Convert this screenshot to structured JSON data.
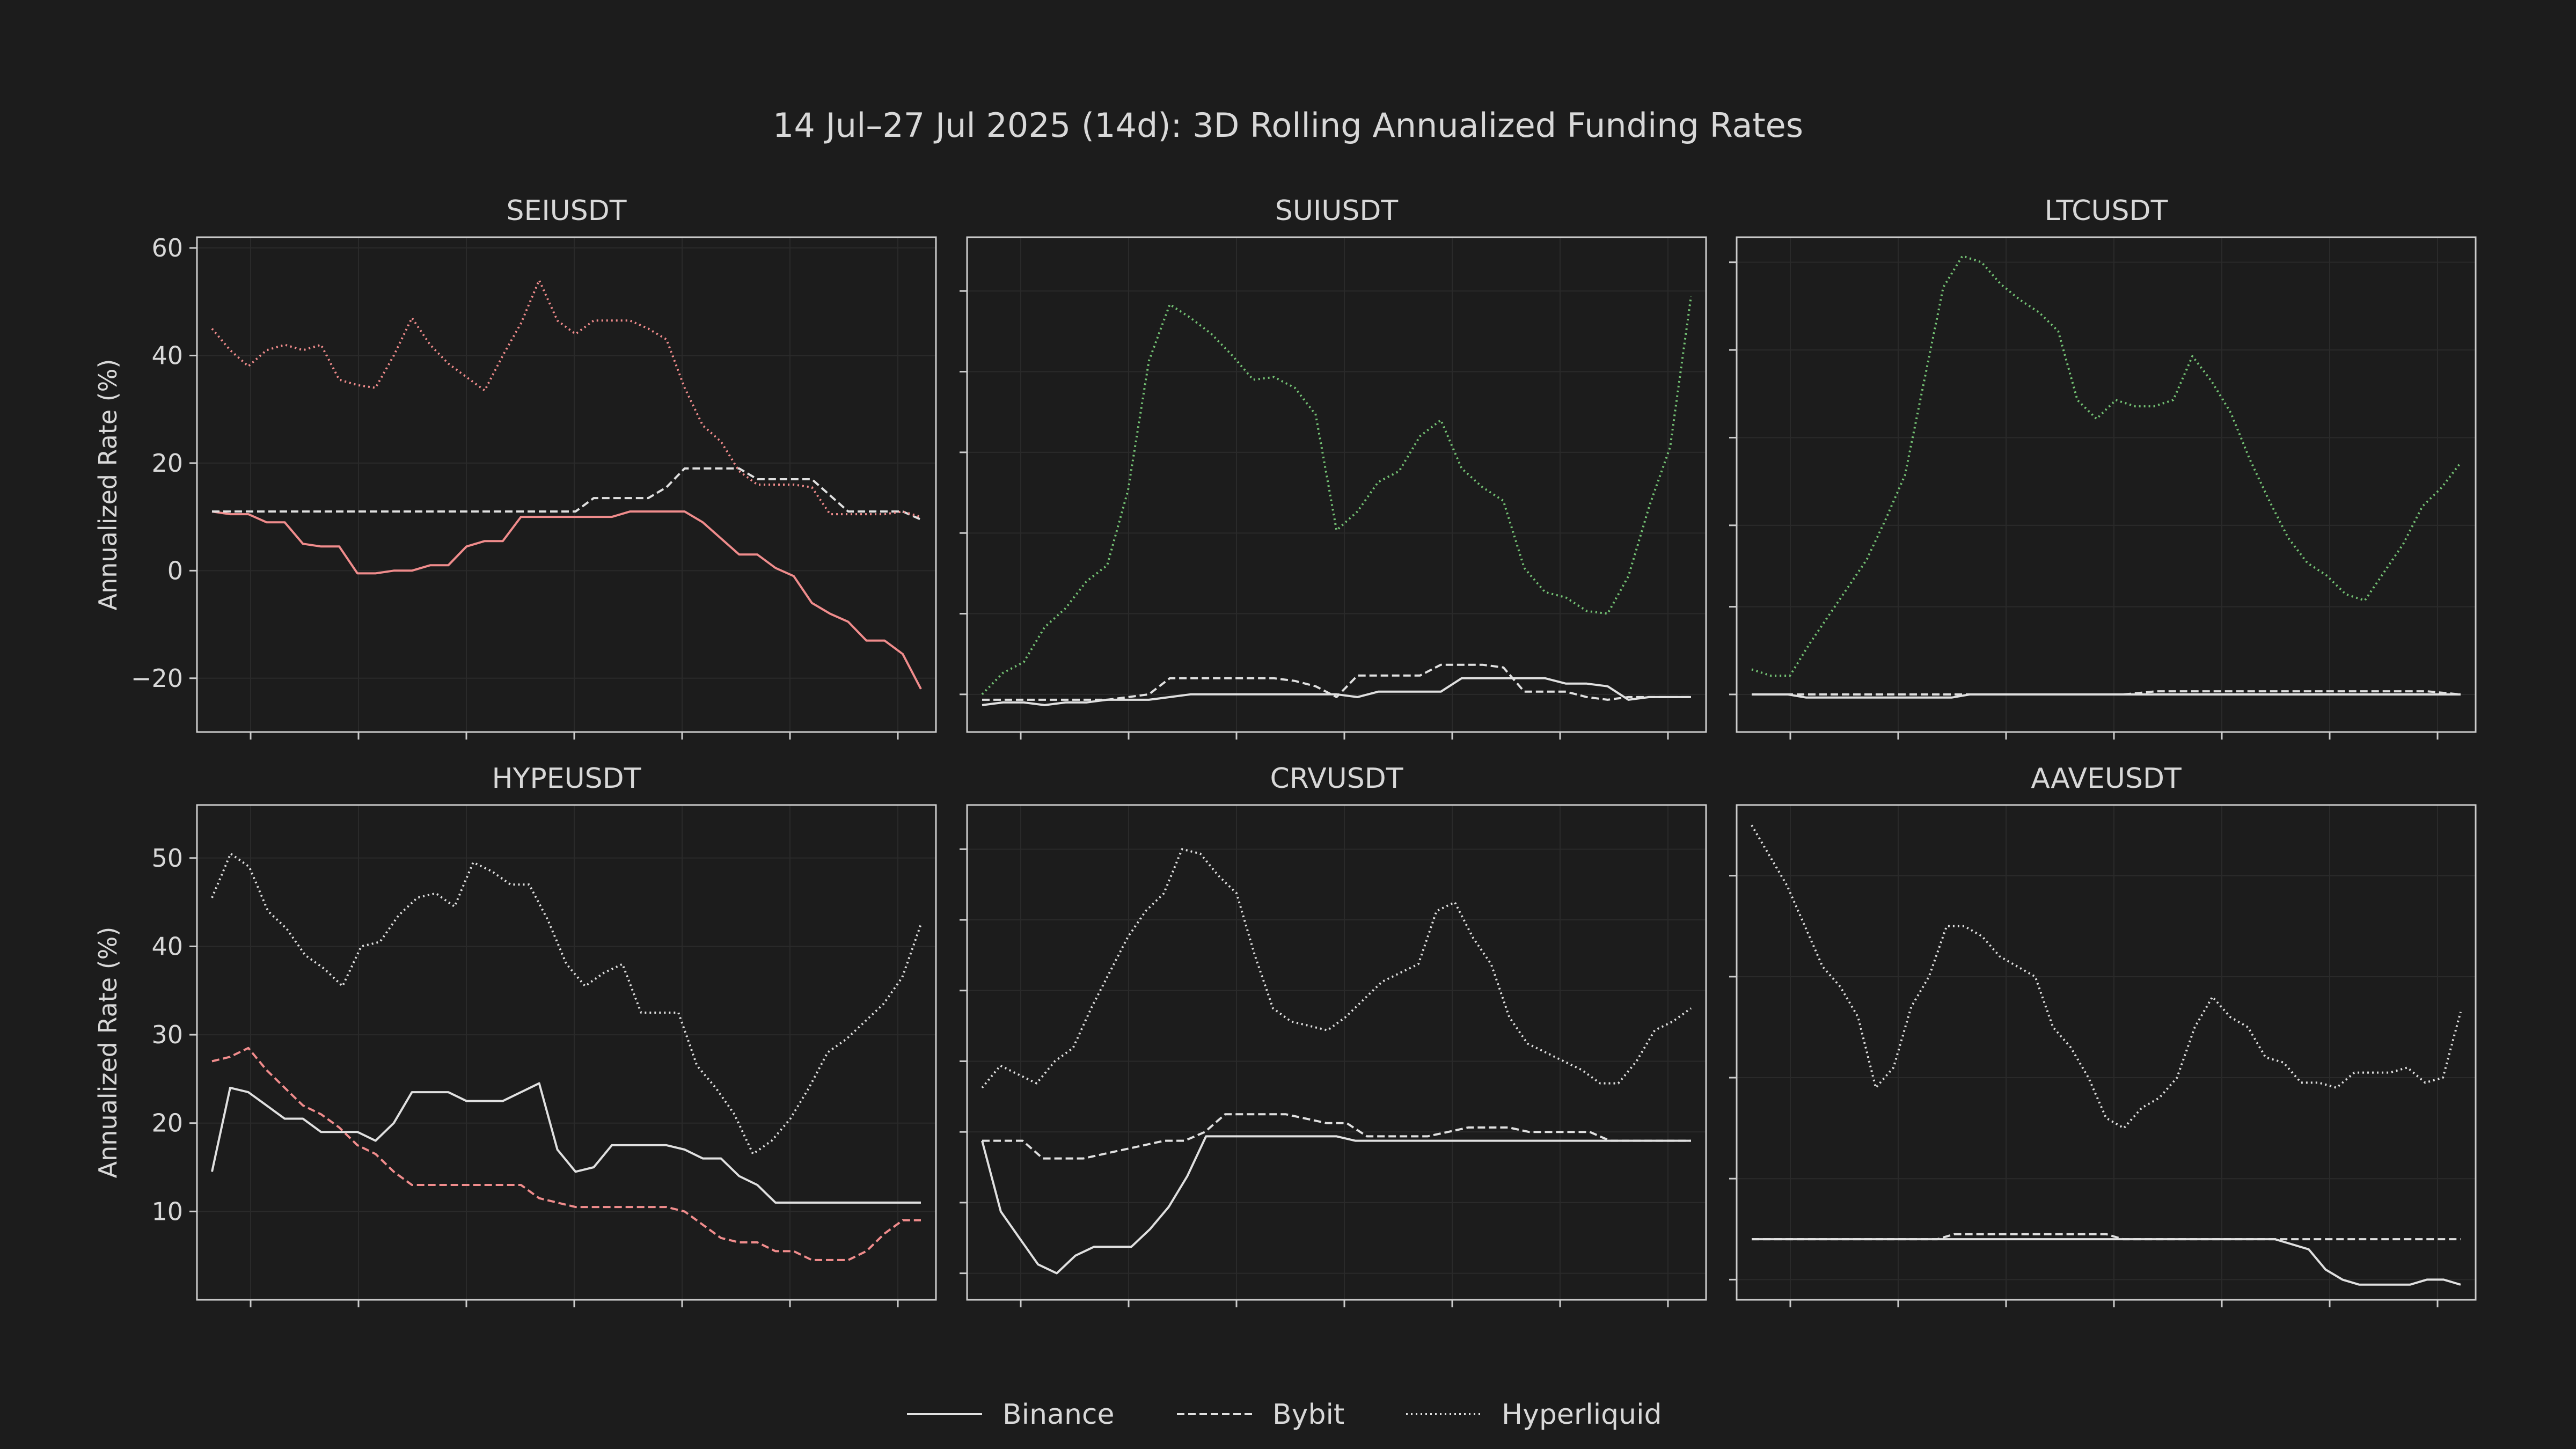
{
  "figure": {
    "title": "14 Jul–27 Jul 2025 (14d): 3D Rolling Annualized Funding Rates",
    "ylabel": "Annualized Rate (%)",
    "legend": {
      "position": "bottom-center",
      "entries": [
        {
          "label": "Binance",
          "style": "solid"
        },
        {
          "label": "Bybit",
          "style": "dashed"
        },
        {
          "label": "Hyperliquid",
          "style": "dotted"
        }
      ]
    },
    "colors": {
      "background": "#1c1c1c",
      "axes": "#cccccc",
      "text": "#d8d8d8",
      "default_line": "#e0e0e0",
      "red_highlight": "#f08c8c",
      "green_highlight": "#74c274"
    }
  },
  "chart_data": [
    {
      "type": "line",
      "title": "SEIUSDT",
      "ylabel": "Annualized Rate (%)",
      "ylim": [
        -30,
        62
      ],
      "yticks": [
        -20,
        0,
        20,
        40,
        60
      ],
      "ytick_labels": [
        "−20",
        "0",
        "20",
        "40",
        "60"
      ],
      "show_ytick_labels": true,
      "series": [
        {
          "name": "Binance",
          "color": "#f08c8c",
          "values": [
            11,
            10.5,
            10.5,
            9,
            9,
            5,
            4.5,
            4.5,
            -0.5,
            -0.5,
            0,
            0,
            1,
            1,
            4.5,
            5.5,
            5.5,
            10,
            10,
            10,
            10,
            10,
            10,
            11,
            11,
            11,
            11,
            9,
            6,
            3,
            3,
            0.5,
            -1,
            -6,
            -8,
            -9.5,
            -13,
            -13,
            -15.5,
            -22
          ]
        },
        {
          "name": "Bybit",
          "color": "#e0e0e0",
          "values": [
            11,
            11,
            11,
            11,
            11,
            11,
            11,
            11,
            11,
            11,
            11,
            11,
            11,
            11,
            11,
            11,
            11,
            11,
            11,
            11,
            11,
            13.5,
            13.5,
            13.5,
            13.5,
            15.5,
            19,
            19,
            19,
            19,
            17,
            17,
            17,
            17,
            14,
            11,
            11,
            11,
            11,
            9.5
          ]
        },
        {
          "name": "Hyperliquid",
          "color": "#f08c8c",
          "values": [
            45,
            41,
            38,
            41,
            42,
            41,
            42,
            35.5,
            34.5,
            34,
            40,
            47,
            42,
            38.5,
            36,
            33.5,
            40,
            46,
            54,
            46.5,
            44,
            46.5,
            46.5,
            46.5,
            45,
            43,
            34,
            27,
            24,
            18.5,
            16,
            16,
            16,
            15.5,
            10.5,
            10.5,
            10.5,
            10.5,
            11,
            10
          ]
        }
      ]
    },
    {
      "type": "line",
      "title": "SUIUSDT",
      "ylim": [
        -27,
        65
      ],
      "yticks": [
        -20,
        -5,
        10,
        25,
        40,
        55
      ],
      "show_ytick_labels": false,
      "series": [
        {
          "name": "Binance",
          "color": "#e0e0e0",
          "values": [
            -22,
            -21.5,
            -21.5,
            -22,
            -21.5,
            -21.5,
            -21,
            -21,
            -21,
            -20.5,
            -20,
            -20,
            -20,
            -20,
            -20,
            -20,
            -20,
            -20,
            -20.5,
            -19.5,
            -19.5,
            -19.5,
            -19.5,
            -17,
            -17,
            -17,
            -17,
            -17,
            -18,
            -18,
            -18.5,
            -21,
            -20.5,
            -20.5,
            -20.5
          ]
        },
        {
          "name": "Bybit",
          "color": "#e0e0e0",
          "values": [
            -21,
            -21,
            -21,
            -21,
            -21,
            -21,
            -21,
            -20.5,
            -20,
            -17,
            -17,
            -17,
            -17,
            -17,
            -17,
            -17.5,
            -18.5,
            -20.5,
            -16.5,
            -16.5,
            -16.5,
            -16.5,
            -14.5,
            -14.5,
            -14.5,
            -15,
            -19.5,
            -19.5,
            -19.5,
            -20.5,
            -21,
            -20.5,
            -20.5,
            -20.5,
            -20.5
          ]
        },
        {
          "name": "Hyperliquid",
          "color": "#74c274",
          "values": [
            -20,
            -16,
            -14,
            -7.5,
            -4,
            1,
            4,
            18,
            42,
            52.5,
            50,
            47,
            43,
            38.5,
            39,
            37,
            32,
            10.5,
            14,
            19.5,
            21.5,
            28,
            31,
            22,
            18.5,
            16,
            3.5,
            -1,
            -2,
            -4.5,
            -5,
            2,
            15,
            26,
            54
          ]
        }
      ]
    },
    {
      "type": "line",
      "title": "LTCUSDT",
      "ylim": [
        -23,
        56
      ],
      "yticks": [
        -17,
        -3,
        10,
        24,
        38,
        52
      ],
      "show_ytick_labels": false,
      "series": [
        {
          "name": "Binance",
          "color": "#e0e0e0",
          "values": [
            -17,
            -17,
            -17,
            -17.5,
            -17.5,
            -17.5,
            -17.5,
            -17.5,
            -17.5,
            -17.5,
            -17.5,
            -17.5,
            -17,
            -17,
            -17,
            -17,
            -17,
            -17,
            -17,
            -17,
            -17,
            -17,
            -17,
            -17,
            -17,
            -17,
            -17,
            -17,
            -17,
            -17,
            -17,
            -17,
            -17,
            -17,
            -17,
            -17,
            -17,
            -17,
            -17,
            -17
          ]
        },
        {
          "name": "Bybit",
          "color": "#e0e0e0",
          "values": [
            -17,
            -17,
            -17,
            -17,
            -17,
            -17,
            -17,
            -17,
            -17,
            -17,
            -17,
            -17,
            -16.5,
            -16.5,
            -16.5,
            -16.5,
            -16.5,
            -16.5,
            -16.5,
            -16.5,
            -16.5,
            -17
          ]
        },
        {
          "name": "Hyperliquid",
          "color": "#74c274",
          "values": [
            -13,
            -14,
            -14,
            -9,
            -4.5,
            0,
            4.5,
            11,
            18,
            33,
            48,
            53,
            52,
            48.5,
            46,
            44,
            41,
            30,
            27,
            30,
            29,
            29,
            30,
            37,
            33,
            28,
            20.5,
            14,
            8,
            4,
            2,
            -1,
            -2,
            2.5,
            7,
            13,
            16,
            20
          ]
        }
      ]
    },
    {
      "type": "line",
      "title": "HYPEUSDT",
      "ylabel": "Annualized Rate (%)",
      "ylim": [
        0,
        56
      ],
      "yticks": [
        10,
        20,
        30,
        40,
        50
      ],
      "ytick_labels": [
        "10",
        "20",
        "30",
        "40",
        "50"
      ],
      "show_ytick_labels": true,
      "series": [
        {
          "name": "Binance",
          "color": "#e0e0e0",
          "values": [
            14.5,
            24,
            23.5,
            22,
            20.5,
            20.5,
            19,
            19,
            19,
            18,
            20,
            23.5,
            23.5,
            23.5,
            22.5,
            22.5,
            22.5,
            23.5,
            24.5,
            17,
            14.5,
            15,
            17.5,
            17.5,
            17.5,
            17.5,
            17,
            16,
            16,
            14,
            13,
            11,
            11,
            11,
            11,
            11,
            11,
            11,
            11,
            11
          ]
        },
        {
          "name": "Bybit",
          "color": "#f08c8c",
          "values": [
            27,
            27.5,
            28.5,
            26,
            24,
            22,
            21,
            19.5,
            17.5,
            16.5,
            14.5,
            13,
            13,
            13,
            13,
            13,
            13,
            13,
            11.5,
            11,
            10.5,
            10.5,
            10.5,
            10.5,
            10.5,
            10.5,
            10,
            8.5,
            7,
            6.5,
            6.5,
            5.5,
            5.5,
            4.5,
            4.5,
            4.5,
            5.5,
            7.5,
            9,
            9
          ]
        },
        {
          "name": "Hyperliquid",
          "color": "#e0e0e0",
          "values": [
            45.5,
            50.5,
            49,
            44,
            42,
            39,
            37.5,
            35.5,
            40,
            40.5,
            43.5,
            45.5,
            46,
            44.5,
            49.5,
            48.5,
            47,
            47,
            43,
            38,
            35.5,
            37,
            38,
            32.5,
            32.5,
            32.5,
            26.5,
            24,
            21,
            16.5,
            18,
            20.5,
            24,
            28,
            29.5,
            31.5,
            33.5,
            36.5,
            42.5
          ]
        }
      ]
    },
    {
      "type": "line",
      "title": "CRVUSDT",
      "ylim": [
        1,
        57
      ],
      "yticks": [
        4,
        12,
        20,
        28,
        36,
        44,
        52
      ],
      "show_ytick_labels": false,
      "series": [
        {
          "name": "Binance",
          "color": "#e0e0e0",
          "values": [
            19,
            11,
            8,
            5,
            4,
            6,
            7,
            7,
            7,
            9,
            11.5,
            15,
            19.5,
            19.5,
            19.5,
            19.5,
            19.5,
            19.5,
            19.5,
            19.5,
            19,
            19,
            19,
            19,
            19,
            19,
            19,
            19,
            19,
            19,
            19,
            19,
            19,
            19,
            19,
            19,
            19,
            19,
            19
          ]
        },
        {
          "name": "Bybit",
          "color": "#e0e0e0",
          "values": [
            19,
            19,
            19,
            17,
            17,
            17,
            17.5,
            18,
            18.5,
            19,
            19,
            20,
            22,
            22,
            22,
            22,
            21.5,
            21,
            21,
            19.5,
            19.5,
            19.5,
            19.5,
            20,
            20.5,
            20.5,
            20.5,
            20,
            20,
            20,
            20,
            19,
            19,
            19,
            19,
            19
          ]
        },
        {
          "name": "Hyperliquid",
          "color": "#e0e0e0",
          "values": [
            25,
            27.5,
            26.5,
            25.5,
            28,
            29.5,
            34,
            38,
            42,
            45,
            47,
            52,
            51.5,
            49,
            47,
            40,
            34,
            32.5,
            32,
            31.5,
            33,
            35,
            37,
            38,
            39,
            45,
            46,
            42,
            39,
            33,
            30,
            29,
            28,
            27,
            25.5,
            25.5,
            28,
            31.5,
            32.5,
            34
          ]
        }
      ]
    },
    {
      "type": "line",
      "title": "AAVEUSDT",
      "ylim": [
        3,
        52
      ],
      "yticks": [
        5,
        15,
        25,
        35,
        45
      ],
      "show_ytick_labels": false,
      "series": [
        {
          "name": "Binance",
          "color": "#e0e0e0",
          "values": [
            9,
            9,
            9,
            9,
            9,
            9,
            9,
            9,
            9,
            9,
            9,
            9,
            9,
            9,
            9,
            9,
            9,
            9,
            9,
            9,
            9,
            9,
            9,
            9,
            9,
            9,
            9,
            9,
            9,
            9,
            9,
            9,
            8.5,
            8,
            6,
            5,
            4.5,
            4.5,
            4.5,
            4.5,
            5,
            5,
            4.5
          ]
        },
        {
          "name": "Bybit",
          "color": "#e0e0e0",
          "values": [
            9,
            9,
            9,
            9,
            9,
            9,
            9,
            9,
            9,
            9,
            9,
            9,
            9.5,
            9.5,
            9.5,
            9.5,
            9.5,
            9.5,
            9.5,
            9.5,
            9.5,
            9.5,
            9,
            9,
            9,
            9,
            9,
            9,
            9,
            9,
            9,
            9,
            9,
            9,
            9,
            9,
            9,
            9,
            9,
            9,
            9,
            9,
            9
          ]
        },
        {
          "name": "Hyperliquid",
          "color": "#e0e0e0",
          "values": [
            50,
            47,
            44,
            40,
            36,
            34,
            31,
            24,
            26,
            32,
            35,
            40,
            40,
            39,
            37,
            36,
            35,
            30,
            28,
            25,
            21,
            20,
            22,
            23,
            25,
            30,
            33,
            31,
            30,
            27,
            26.5,
            24.5,
            24.5,
            24,
            25.5,
            25.5,
            25.5,
            26,
            24.5,
            25,
            31.5
          ]
        }
      ]
    }
  ]
}
